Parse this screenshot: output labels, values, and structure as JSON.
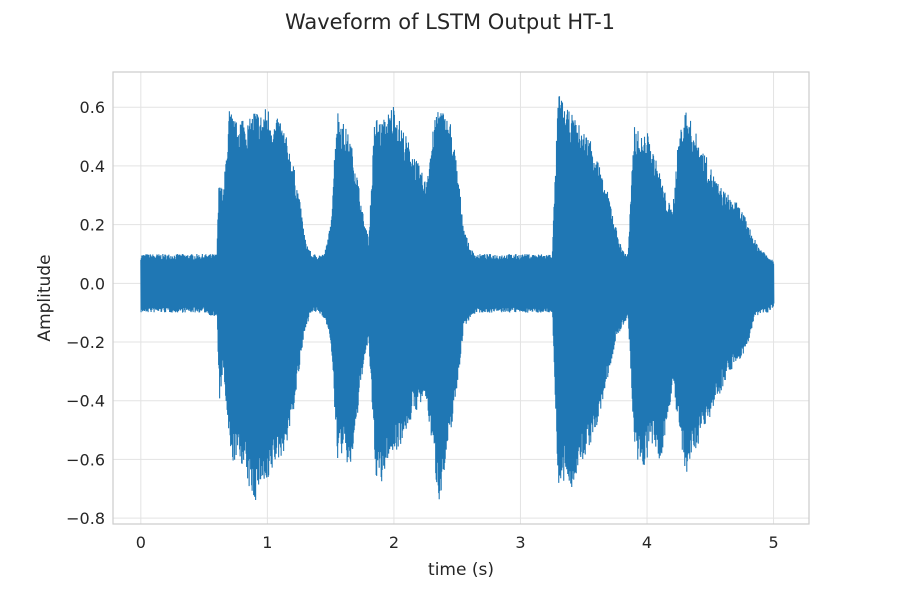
{
  "chart_data": {
    "type": "line",
    "title": "Waveform of LSTM Output HT-1",
    "xlabel": "time (s)",
    "ylabel": "Amplitude",
    "xlim": [
      -0.22,
      5.28
    ],
    "ylim": [
      -0.82,
      0.72
    ],
    "xticks": [
      0,
      1,
      2,
      3,
      4,
      5
    ],
    "xtick_labels": [
      "0",
      "1",
      "2",
      "3",
      "4",
      "5"
    ],
    "yticks": [
      0.6,
      0.4,
      0.2,
      0.0,
      -0.2,
      -0.4,
      -0.6,
      -0.8
    ],
    "ytick_labels": [
      "0.6",
      "0.4",
      "0.2",
      "0.0",
      "−0.2",
      "−0.4",
      "−0.6",
      "−0.8"
    ],
    "grid": true,
    "line_color": "#1f77b4",
    "series": [
      {
        "x": [
          0.0,
          0.1,
          0.2,
          0.3,
          0.4,
          0.5,
          0.6,
          0.62,
          0.65,
          0.7,
          0.72,
          0.75,
          0.8,
          0.85,
          0.9,
          0.95,
          1.0,
          1.05,
          1.1,
          1.15,
          1.2,
          1.25,
          1.3,
          1.35,
          1.4,
          1.45,
          1.5,
          1.55,
          1.6,
          1.65,
          1.7,
          1.75,
          1.8,
          1.85,
          1.9,
          1.95,
          2.0,
          2.05,
          2.1,
          2.15,
          2.2,
          2.25,
          2.3,
          2.35,
          2.4,
          2.45,
          2.5,
          2.55,
          2.6,
          2.65,
          2.7,
          2.8,
          2.9,
          3.0,
          3.1,
          3.2,
          3.25,
          3.3,
          3.35,
          3.4,
          3.45,
          3.5,
          3.55,
          3.6,
          3.65,
          3.7,
          3.75,
          3.8,
          3.85,
          3.9,
          3.95,
          4.0,
          4.05,
          4.1,
          4.15,
          4.2,
          4.25,
          4.3,
          4.35,
          4.4,
          4.45,
          4.5,
          4.55,
          4.6,
          4.65,
          4.7,
          4.75,
          4.8,
          4.85,
          4.9,
          4.95,
          5.0
        ],
        "y_max": [
          0.1,
          0.1,
          0.1,
          0.1,
          0.1,
          0.1,
          0.1,
          0.38,
          0.3,
          0.6,
          0.58,
          0.55,
          0.58,
          0.55,
          0.6,
          0.58,
          0.61,
          0.55,
          0.57,
          0.5,
          0.42,
          0.3,
          0.15,
          0.1,
          0.1,
          0.1,
          0.2,
          0.6,
          0.55,
          0.5,
          0.4,
          0.25,
          0.15,
          0.58,
          0.55,
          0.58,
          0.62,
          0.55,
          0.5,
          0.45,
          0.4,
          0.35,
          0.5,
          0.62,
          0.58,
          0.55,
          0.4,
          0.2,
          0.12,
          0.1,
          0.1,
          0.1,
          0.1,
          0.1,
          0.1,
          0.1,
          0.1,
          0.66,
          0.6,
          0.58,
          0.55,
          0.52,
          0.5,
          0.45,
          0.35,
          0.3,
          0.2,
          0.12,
          0.1,
          0.55,
          0.5,
          0.52,
          0.45,
          0.38,
          0.3,
          0.25,
          0.5,
          0.6,
          0.55,
          0.5,
          0.45,
          0.4,
          0.35,
          0.32,
          0.3,
          0.28,
          0.25,
          0.2,
          0.15,
          0.12,
          0.1,
          0.08
        ],
        "y_min": [
          -0.1,
          -0.1,
          -0.1,
          -0.1,
          -0.1,
          -0.1,
          -0.12,
          -0.4,
          -0.3,
          -0.58,
          -0.62,
          -0.6,
          -0.62,
          -0.7,
          -0.75,
          -0.68,
          -0.72,
          -0.62,
          -0.6,
          -0.55,
          -0.45,
          -0.3,
          -0.15,
          -0.1,
          -0.1,
          -0.12,
          -0.2,
          -0.6,
          -0.58,
          -0.65,
          -0.5,
          -0.3,
          -0.2,
          -0.65,
          -0.7,
          -0.6,
          -0.58,
          -0.55,
          -0.5,
          -0.45,
          -0.42,
          -0.4,
          -0.55,
          -0.75,
          -0.65,
          -0.5,
          -0.35,
          -0.15,
          -0.12,
          -0.1,
          -0.1,
          -0.1,
          -0.1,
          -0.1,
          -0.1,
          -0.1,
          -0.1,
          -0.73,
          -0.68,
          -0.7,
          -0.65,
          -0.6,
          -0.55,
          -0.5,
          -0.4,
          -0.3,
          -0.2,
          -0.15,
          -0.12,
          -0.6,
          -0.65,
          -0.6,
          -0.55,
          -0.62,
          -0.5,
          -0.35,
          -0.5,
          -0.68,
          -0.6,
          -0.55,
          -0.5,
          -0.45,
          -0.4,
          -0.35,
          -0.3,
          -0.28,
          -0.25,
          -0.2,
          -0.12,
          -0.1,
          -0.1,
          -0.08
        ]
      }
    ]
  }
}
